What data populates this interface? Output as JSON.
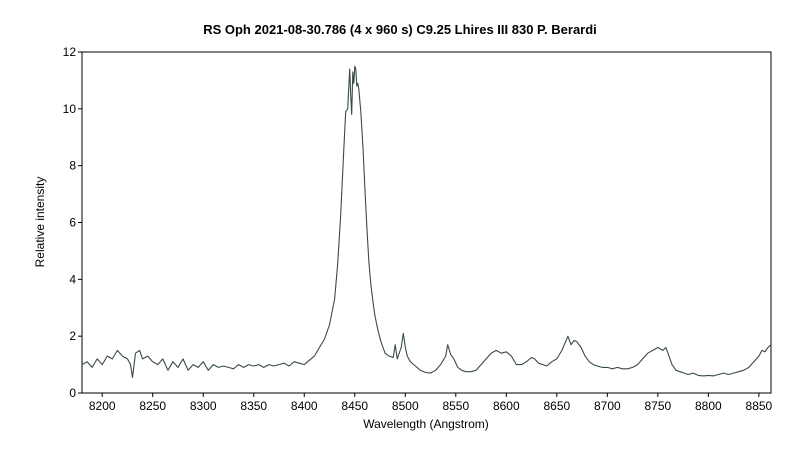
{
  "chart_data": {
    "type": "line",
    "title": "RS Oph   2021-08-30.786   (4 x 960 s)    C9.25   Lhires III 830   P. Berardi",
    "xlabel": "Wavelength (Angstrom)",
    "ylabel": "Relative intensity",
    "xlim": [
      8180,
      8862
    ],
    "ylim": [
      0,
      12
    ],
    "x_ticks": [
      8200,
      8250,
      8300,
      8350,
      8400,
      8450,
      8500,
      8550,
      8600,
      8650,
      8700,
      8750,
      8800,
      8850
    ],
    "y_ticks": [
      0,
      2,
      4,
      6,
      8,
      10,
      12
    ],
    "grid": false,
    "line_color": "#3a4a4a",
    "series": [
      {
        "x": [
          8180,
          8185,
          8190,
          8195,
          8200,
          8205,
          8210,
          8215,
          8220,
          8225,
          8228,
          8230,
          8233,
          8237,
          8240,
          8245,
          8250,
          8255,
          8260,
          8265,
          8270,
          8275,
          8280,
          8285,
          8290,
          8295,
          8300,
          8305,
          8310,
          8315,
          8320,
          8325,
          8330,
          8335,
          8340,
          8345,
          8350,
          8355,
          8360,
          8365,
          8370,
          8375,
          8380,
          8385,
          8390,
          8395,
          8400,
          8405,
          8410,
          8415,
          8420,
          8425,
          8430,
          8433,
          8436,
          8439,
          8441,
          8443,
          8445,
          8446,
          8447,
          8448,
          8449,
          8450,
          8451,
          8452,
          8453,
          8454,
          8456,
          8458,
          8460,
          8462,
          8464,
          8466,
          8468,
          8470,
          8473,
          8476,
          8480,
          8484,
          8488,
          8490,
          8492,
          8494,
          8496,
          8498,
          8500,
          8502,
          8505,
          8510,
          8515,
          8520,
          8525,
          8530,
          8535,
          8540,
          8542,
          8545,
          8548,
          8552,
          8556,
          8560,
          8565,
          8570,
          8575,
          8580,
          8585,
          8590,
          8595,
          8600,
          8605,
          8610,
          8615,
          8620,
          8625,
          8628,
          8632,
          8636,
          8640,
          8645,
          8650,
          8655,
          8658,
          8661,
          8664,
          8667,
          8670,
          8674,
          8678,
          8682,
          8686,
          8690,
          8695,
          8700,
          8705,
          8710,
          8715,
          8720,
          8725,
          8730,
          8735,
          8740,
          8745,
          8750,
          8755,
          8758,
          8761,
          8764,
          8768,
          8772,
          8776,
          8780,
          8785,
          8790,
          8795,
          8800,
          8805,
          8810,
          8815,
          8820,
          8825,
          8830,
          8835,
          8840,
          8845,
          8850,
          8853,
          8856,
          8859,
          8862
        ],
        "y": [
          1.0,
          1.1,
          0.9,
          1.2,
          1.0,
          1.3,
          1.2,
          1.5,
          1.3,
          1.2,
          1.0,
          0.55,
          1.4,
          1.5,
          1.2,
          1.3,
          1.1,
          1.0,
          1.2,
          0.8,
          1.1,
          0.9,
          1.2,
          0.8,
          1.0,
          0.9,
          1.1,
          0.8,
          1.0,
          0.9,
          0.95,
          0.9,
          0.85,
          1.0,
          0.9,
          1.0,
          0.95,
          1.0,
          0.9,
          1.0,
          0.95,
          1.0,
          1.05,
          0.95,
          1.1,
          1.05,
          1.0,
          1.15,
          1.3,
          1.6,
          1.9,
          2.4,
          3.3,
          4.5,
          6.2,
          8.5,
          9.9,
          10.0,
          11.4,
          10.5,
          9.8,
          11.3,
          10.9,
          11.5,
          11.4,
          10.8,
          10.9,
          10.7,
          9.9,
          8.7,
          7.2,
          5.8,
          4.6,
          3.8,
          3.2,
          2.7,
          2.2,
          1.8,
          1.4,
          1.3,
          1.25,
          1.7,
          1.2,
          1.4,
          1.6,
          2.1,
          1.6,
          1.3,
          1.1,
          0.95,
          0.8,
          0.72,
          0.7,
          0.8,
          1.0,
          1.3,
          1.7,
          1.35,
          1.2,
          0.9,
          0.8,
          0.75,
          0.75,
          0.8,
          1.0,
          1.2,
          1.4,
          1.5,
          1.4,
          1.45,
          1.3,
          1.0,
          1.0,
          1.1,
          1.25,
          1.2,
          1.05,
          1.0,
          0.95,
          1.1,
          1.2,
          1.5,
          1.75,
          2.0,
          1.7,
          1.85,
          1.8,
          1.6,
          1.3,
          1.1,
          1.0,
          0.95,
          0.9,
          0.9,
          0.85,
          0.9,
          0.85,
          0.85,
          0.9,
          1.0,
          1.2,
          1.4,
          1.5,
          1.6,
          1.5,
          1.6,
          1.3,
          1.0,
          0.8,
          0.75,
          0.7,
          0.65,
          0.7,
          0.62,
          0.6,
          0.62,
          0.6,
          0.65,
          0.7,
          0.65,
          0.7,
          0.75,
          0.8,
          0.9,
          1.1,
          1.3,
          1.5,
          1.45,
          1.6,
          1.7
        ]
      }
    ]
  }
}
